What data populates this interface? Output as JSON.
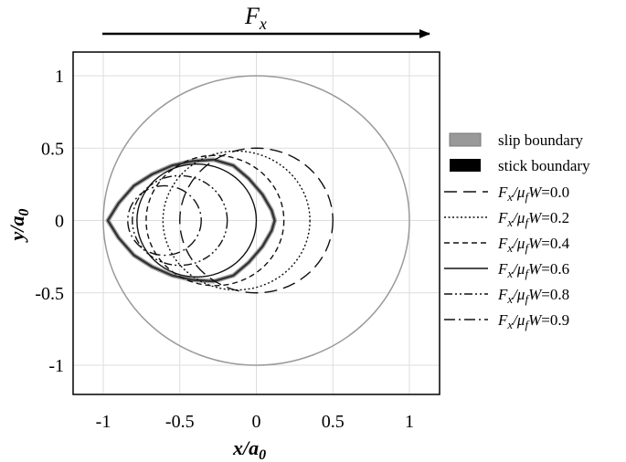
{
  "chart_data": {
    "type": "line",
    "title": "",
    "xlabel": "x/a0",
    "ylabel": "y/a0",
    "xlim": [
      -1.2,
      1.2
    ],
    "ylim": [
      -1.2,
      1.2
    ],
    "xticks": [
      "-1",
      "-0.5",
      "0",
      "0.5",
      "1"
    ],
    "yticks": [
      "1",
      "0.5",
      "0",
      "-0.5",
      "-1"
    ],
    "grid": true,
    "force_label": "Fx",
    "legend_position": "right",
    "legend": [
      {
        "id": "slip",
        "label": "slip boundary"
      },
      {
        "id": "stick",
        "label": "stick boundary"
      },
      {
        "id": "f00",
        "label": "Fx/μfW=0.0",
        "value": "0.0"
      },
      {
        "id": "f02",
        "label": "Fx/μfW=0.2",
        "value": "0.2"
      },
      {
        "id": "f04",
        "label": "Fx/μfW=0.4",
        "value": "0.4"
      },
      {
        "id": "f06",
        "label": "Fx/μfW=0.6",
        "value": "0.6"
      },
      {
        "id": "f08",
        "label": "Fx/μfW=0.8",
        "value": "0.8"
      },
      {
        "id": "f09",
        "label": "Fx/μfW=0.9",
        "value": "0.9"
      }
    ],
    "series": [
      {
        "id": "slip",
        "shape": "circle",
        "center": [
          0,
          0
        ],
        "radius": 1.0,
        "color": "#9a9a9a"
      },
      {
        "id": "stick",
        "shape": "locus",
        "color": "#333333",
        "x": [
          -0.97,
          -0.9,
          -0.8,
          -0.68,
          -0.55,
          -0.42,
          -0.28,
          -0.15,
          -0.05,
          0.04,
          0.1,
          0.12,
          0.1,
          0.04,
          -0.05,
          -0.15,
          -0.28,
          -0.42,
          -0.55,
          -0.68,
          -0.8,
          -0.9,
          -0.97
        ],
        "y": [
          0.0,
          0.12,
          0.24,
          0.32,
          0.38,
          0.41,
          0.42,
          0.38,
          0.29,
          0.18,
          0.07,
          0.0,
          -0.07,
          -0.18,
          -0.29,
          -0.38,
          -0.42,
          -0.41,
          -0.38,
          -0.32,
          -0.24,
          -0.12,
          0.0
        ]
      },
      {
        "id": "f00",
        "shape": "circle",
        "center": [
          0.0,
          0.0
        ],
        "radius": 0.5
      },
      {
        "id": "f02",
        "shape": "circle",
        "center": [
          -0.13,
          0.0
        ],
        "radius": 0.48
      },
      {
        "id": "f04",
        "shape": "circle",
        "center": [
          -0.27,
          0.0
        ],
        "radius": 0.45
      },
      {
        "id": "f06",
        "shape": "circle",
        "center": [
          -0.39,
          0.0
        ],
        "radius": 0.39
      },
      {
        "id": "f08",
        "shape": "circle",
        "center": [
          -0.5,
          0.0
        ],
        "radius": 0.31
      },
      {
        "id": "f09",
        "shape": "circle",
        "center": [
          -0.6,
          0.0
        ],
        "radius": 0.24
      }
    ]
  }
}
